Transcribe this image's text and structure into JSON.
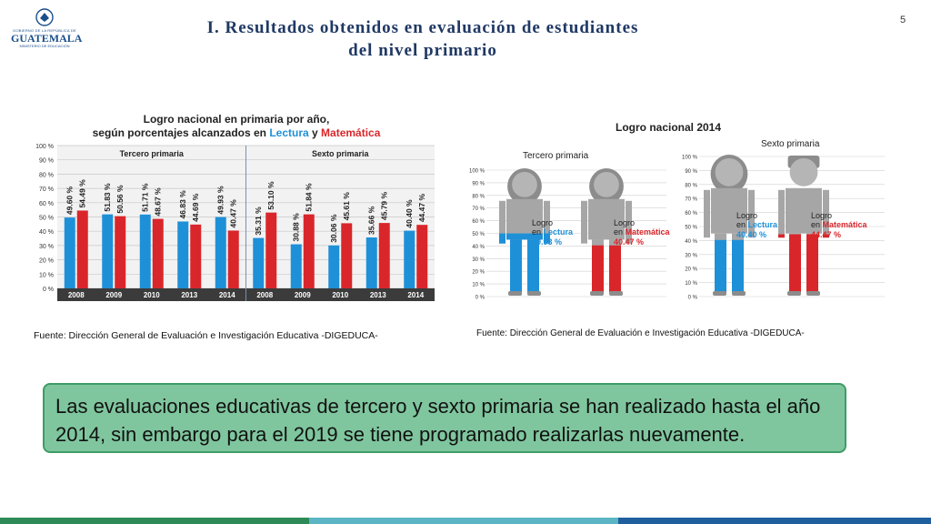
{
  "slide": {
    "title_line1": "I. Resultados obtenidos en evaluación de estudiantes",
    "title_line2": "del nivel primario",
    "page_number": "5"
  },
  "logo": {
    "top_text": "GOBIERNO DE LA REPÚBLICA DE",
    "name": "GUATEMALA",
    "ministry": "MINISTERIO DE EDUCACIÓN"
  },
  "chart_data": [
    {
      "type": "bar",
      "title_line1": "Logro nacional en primaria por año,",
      "title_line2_prefix": "según porcentajes alcanzados en ",
      "title_lectura": "Lectura",
      "title_conj": " y ",
      "title_matematica": "Matemática",
      "groups": [
        {
          "label": "Tercero primaria",
          "categories": [
            "2008",
            "2009",
            "2010",
            "2013",
            "2014"
          ],
          "lectura": [
            49.6,
            51.83,
            51.71,
            46.83,
            49.93
          ],
          "matematica": [
            54.49,
            50.56,
            48.67,
            44.69,
            40.47
          ]
        },
        {
          "label": "Sexto primaria",
          "categories": [
            "2008",
            "2009",
            "2010",
            "2013",
            "2014"
          ],
          "lectura": [
            35.31,
            30.88,
            30.06,
            35.66,
            40.4
          ],
          "matematica": [
            53.1,
            51.84,
            45.61,
            45.79,
            44.47
          ]
        }
      ],
      "series_colors": {
        "lectura": "#1e90d8",
        "matematica": "#d9262b"
      },
      "yticks": [
        "100 %",
        "90 %",
        "80 %",
        "70 %",
        "60 %",
        "50 %",
        "40 %",
        "30 %",
        "20 %",
        "10 %",
        "0 %"
      ],
      "ylim": [
        0,
        100
      ]
    },
    {
      "type": "pictograph",
      "title": "Logro nacional 2014",
      "panels": [
        {
          "label": "Tercero primaria",
          "yticks": [
            "100 %",
            "90 %",
            "80 %",
            "70 %",
            "60 %",
            "50 %",
            "40 %",
            "30 %",
            "20 %",
            "10 %",
            "0 %"
          ],
          "figures": [
            {
              "gender": "girl",
              "subject": "Lectura",
              "logro": "Logro",
              "en": "en",
              "value_text": "49.93 %",
              "value": 49.93,
              "color": "#1e90d8"
            },
            {
              "gender": "girl",
              "subject": "Matemática",
              "logro": "Logro",
              "en": "en",
              "value_text": "40.47 %",
              "value": 40.47,
              "color": "#d9262b"
            }
          ]
        },
        {
          "label": "Sexto primaria",
          "yticks": [
            "100 %",
            "90 %",
            "80 %",
            "70 %",
            "60 %",
            "50 %",
            "40 %",
            "30 %",
            "20 %",
            "10 %",
            "0 %"
          ],
          "figures": [
            {
              "gender": "girl",
              "subject": "Lectura",
              "logro": "Logro",
              "en": "en",
              "value_text": "40.40 %",
              "value": 40.4,
              "color": "#1e90d8"
            },
            {
              "gender": "boy",
              "subject": "Matemática",
              "logro": "Logro",
              "en": "en",
              "value_text": "44.47 %",
              "value": 44.47,
              "color": "#d9262b"
            }
          ]
        }
      ]
    }
  ],
  "sources": {
    "left": "Fuente: Dirección General de Evaluación e Investigación Educativa -DIGEDUCA-",
    "right": "Fuente: Dirección General de Evaluación e Investigación Educativa -DIGEDUCA-"
  },
  "callout": "Las evaluaciones educativas de tercero y sexto primaria se han realizado hasta el año 2014, sin embargo para el 2019 se tiene programado realizarlas nuevamente.",
  "colors": {
    "title": "#1f3864",
    "callout_bg": "#7fc69e",
    "callout_border": "#3f9c66",
    "band": [
      "#2e8b57",
      "#5bb5c4",
      "#1f5f9e"
    ]
  }
}
